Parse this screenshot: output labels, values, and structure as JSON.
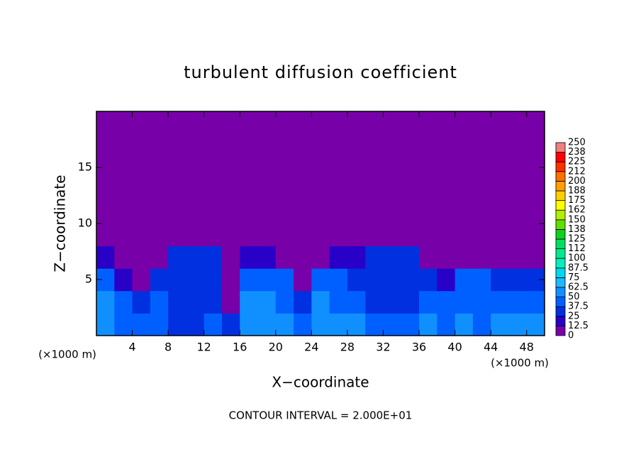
{
  "chart_data": {
    "type": "heatmap",
    "title": "turbulent diffusion coefficient",
    "x_label": "X−coordinate",
    "y_label": "Z−coordinate",
    "annotations": [
      "(×1000 m)",
      "(×1000 m)",
      "CONTOUR INTERVAL = 2.000E+01"
    ],
    "xlim": [
      0,
      50
    ],
    "ylim": [
      0,
      20
    ],
    "xticks": [
      4,
      8,
      12,
      16,
      20,
      24,
      28,
      32,
      36,
      40,
      44,
      48
    ],
    "yticks": [
      5,
      10,
      15
    ],
    "x": [
      1,
      3,
      5,
      7,
      9,
      11,
      13,
      15,
      17,
      19,
      21,
      23,
      25,
      27,
      29,
      31,
      33,
      35,
      37,
      39,
      41,
      43,
      45,
      47,
      49
    ],
    "y": [
      1,
      3,
      5,
      7,
      9,
      11,
      13,
      15,
      17,
      19
    ],
    "values": [
      [
        55,
        45,
        40,
        45,
        35,
        30,
        40,
        30,
        60,
        55,
        50,
        45,
        60,
        55,
        50,
        45,
        40,
        45,
        50,
        45,
        50,
        45,
        55,
        50,
        50
      ],
      [
        50,
        45,
        30,
        40,
        30,
        30,
        35,
        10,
        50,
        55,
        45,
        30,
        50,
        45,
        40,
        35,
        35,
        35,
        45,
        40,
        45,
        40,
        45,
        40,
        45
      ],
      [
        45,
        20,
        10,
        30,
        35,
        30,
        30,
        5,
        45,
        45,
        40,
        10,
        40,
        40,
        35,
        35,
        35,
        35,
        30,
        15,
        40,
        40,
        35,
        35,
        35
      ],
      [
        15,
        0,
        0,
        5,
        35,
        35,
        25,
        0,
        20,
        15,
        10,
        0,
        10,
        15,
        20,
        35,
        35,
        30,
        5,
        0,
        5,
        10,
        5,
        5,
        5
      ],
      [
        0,
        0,
        0,
        0,
        5,
        10,
        5,
        0,
        0,
        0,
        0,
        0,
        0,
        0,
        0,
        5,
        5,
        0,
        0,
        0,
        0,
        0,
        0,
        0,
        0
      ],
      [
        0,
        0,
        0,
        0,
        0,
        0,
        0,
        0,
        0,
        0,
        0,
        0,
        0,
        0,
        0,
        0,
        0,
        0,
        0,
        0,
        0,
        0,
        0,
        0,
        0
      ],
      [
        0,
        0,
        0,
        0,
        0,
        0,
        0,
        0,
        0,
        0,
        0,
        0,
        0,
        0,
        0,
        0,
        0,
        0,
        0,
        0,
        0,
        0,
        0,
        0,
        0
      ],
      [
        0,
        0,
        0,
        0,
        0,
        0,
        0,
        0,
        0,
        0,
        0,
        0,
        0,
        0,
        0,
        0,
        0,
        0,
        0,
        0,
        0,
        0,
        0,
        0,
        0
      ],
      [
        0,
        0,
        0,
        0,
        0,
        0,
        0,
        0,
        0,
        0,
        0,
        0,
        0,
        0,
        0,
        0,
        0,
        0,
        0,
        0,
        0,
        0,
        0,
        0,
        0
      ],
      [
        0,
        0,
        0,
        0,
        0,
        0,
        0,
        0,
        0,
        0,
        0,
        0,
        0,
        0,
        0,
        0,
        0,
        0,
        0,
        0,
        0,
        0,
        0,
        0,
        0
      ]
    ],
    "levels": [
      0,
      12.5,
      25,
      37.5,
      50,
      62.5,
      75,
      87.5,
      100,
      {
        "value": 112.5,
        "label": "112"
      },
      125,
      {
        "value": 137.5,
        "label": "138"
      },
      150,
      {
        "value": 162.5,
        "label": "162"
      },
      175,
      {
        "value": 187.5,
        "label": "188"
      },
      200,
      {
        "value": 212.5,
        "label": "212"
      },
      225,
      {
        "value": 237.5,
        "label": "238"
      },
      250
    ],
    "colors": [
      "#7800a8",
      "#2800c8",
      "#0030e0",
      "#0060ff",
      "#1090ff",
      "#20b8ff",
      "#00d8f0",
      "#00f0c0",
      "#00e890",
      "#00e060",
      "#10d020",
      "#60e000",
      "#b0f000",
      "#ffff00",
      "#ffd000",
      "#ffa000",
      "#ff7000",
      "#ff3000",
      "#ff0000",
      "#f08080"
    ]
  }
}
